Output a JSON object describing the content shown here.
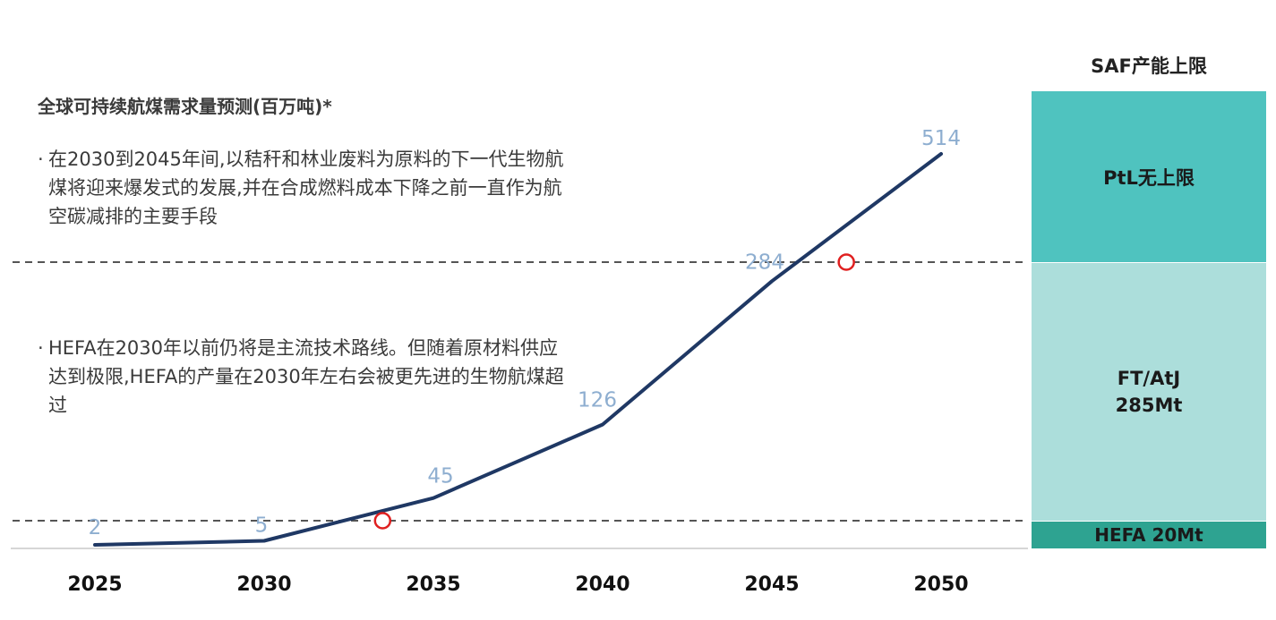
{
  "chart_data": {
    "type": "line",
    "title": "全球可持续航煤需求量预测(百万吨)*",
    "x": [
      2025,
      2030,
      2035,
      2040,
      2045,
      2050
    ],
    "series": [
      {
        "values": [
          2,
          5,
          45,
          126,
          284,
          514
        ],
        "color": "#1f3864"
      }
    ],
    "data_labels": [
      "2",
      "5",
      "45",
      "126",
      "284",
      "514"
    ],
    "x_tick_labels": [
      "2025",
      "2030",
      "2035",
      "2040",
      "2045",
      "2050"
    ],
    "reference_lines": [
      {
        "value": 20,
        "style": "dashed"
      },
      {
        "value": 305,
        "style": "dashed"
      }
    ],
    "crossing_markers": [
      {
        "x": 2033.5,
        "y": 20
      },
      {
        "x": 2047.2,
        "y": 305
      }
    ],
    "grid": false,
    "label_color": "#8eaed0",
    "marker_color": "#e02020"
  },
  "notes": [
    {
      "bullet": "·",
      "text": "在2030到2045年间,以秸秆和林业废料为原料的下一代生物航煤将迎来爆发式的发展,并在合成燃料成本下降之前一直作为航空碳减排的主要手段"
    },
    {
      "bullet": "·",
      "text": "HEFA在2030年以前仍将是主流技术路线。但随着原材料供应达到极限,HEFA的产量在2030年左右会被更先进的生物航煤超过"
    }
  ],
  "capacity": {
    "header": "SAF产能上限",
    "blocks": [
      {
        "label": "PtL无上限",
        "color": "#4fc3bf"
      },
      {
        "label_line1": "FT/AtJ",
        "label_line2": "285Mt",
        "color": "#acdedb"
      },
      {
        "label": "HEFA 20Mt",
        "color": "#2ea391"
      }
    ]
  }
}
